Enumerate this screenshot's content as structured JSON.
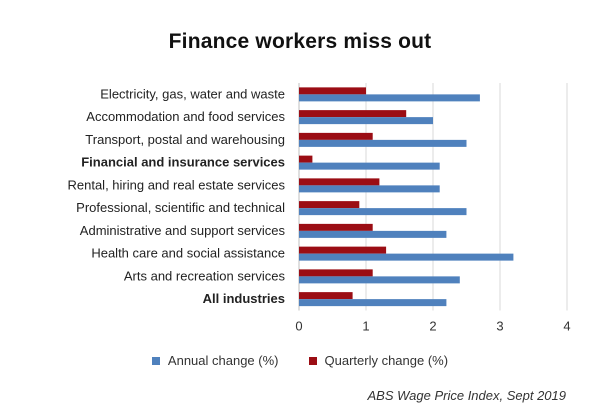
{
  "chart_data": {
    "type": "bar",
    "orientation": "horizontal",
    "title": "Finance workers miss out",
    "categories": [
      "Electricity, gas, water and waste",
      "Accommodation and food services",
      "Transport, postal and warehousing",
      "Financial and insurance services",
      "Rental, hiring and real estate services",
      "Professional, scientific and technical",
      "Administrative and support services",
      "Health care and social assistance",
      "Arts and recreation services",
      "All industries"
    ],
    "bold_categories": [
      "Financial and insurance services",
      "All industries"
    ],
    "series": [
      {
        "name": "Annual change (%)",
        "color": "#4f81bd",
        "values": [
          2.7,
          2.0,
          2.5,
          2.1,
          2.1,
          2.5,
          2.2,
          3.2,
          2.4,
          2.2
        ]
      },
      {
        "name": "Quarterly change (%)",
        "color": "#9b0d14",
        "values": [
          1.0,
          1.6,
          1.1,
          0.2,
          1.2,
          0.9,
          1.1,
          1.3,
          1.1,
          0.8
        ]
      }
    ],
    "xlim": [
      0,
      4
    ],
    "xticks": [
      0,
      1,
      2,
      3,
      4
    ],
    "grid": true,
    "legend_position": "bottom",
    "source": "ABS  Wage Price Index, Sept 2019"
  }
}
